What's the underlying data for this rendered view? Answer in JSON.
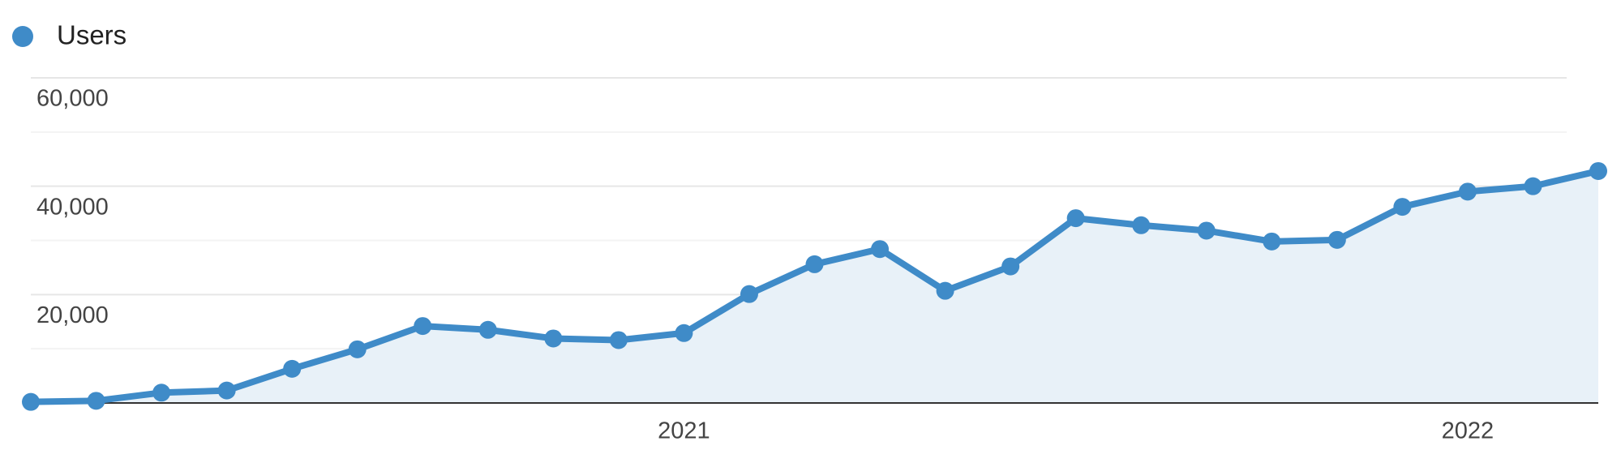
{
  "chart_data": {
    "type": "line",
    "legend": "Users",
    "categories": [
      null,
      null,
      null,
      null,
      null,
      null,
      null,
      null,
      null,
      null,
      "2021",
      null,
      null,
      null,
      null,
      null,
      null,
      null,
      null,
      null,
      null,
      null,
      "2022",
      null,
      null
    ],
    "series": [
      {
        "name": "Users",
        "color": "#3f8bc8",
        "values": [
          200,
          400,
          1900,
          2300,
          6300,
          9900,
          14200,
          13500,
          11900,
          11600,
          12900,
          20100,
          25600,
          28400,
          20700,
          25200,
          34100,
          32800,
          31800,
          29800,
          30100,
          36200,
          39000,
          40000,
          42800
        ]
      }
    ],
    "area": true,
    "ylim": [
      0,
      60000
    ],
    "yticks": [
      {
        "value": 20000,
        "label": "20,000"
      },
      {
        "value": 40000,
        "label": "40,000"
      },
      {
        "value": 60000,
        "label": "60,000"
      }
    ],
    "minor_yticks": [
      10000,
      30000,
      50000
    ],
    "grid": true
  }
}
